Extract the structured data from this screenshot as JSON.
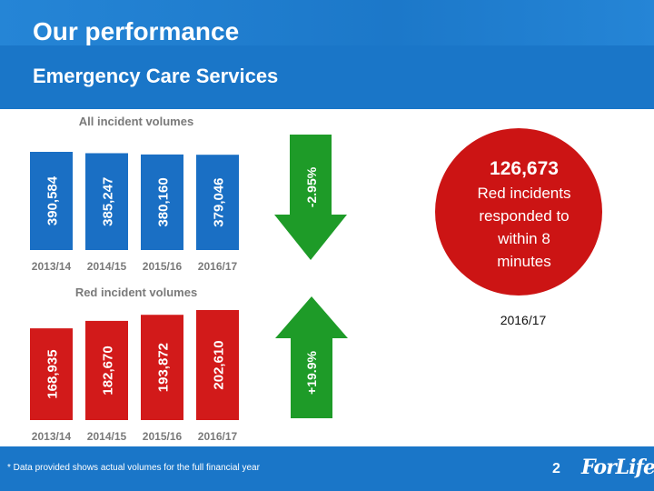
{
  "header": {
    "title": "Our performance",
    "subtitle": "Emergency Care Services"
  },
  "footer": {
    "footnote": "* Data provided shows actual volumes for the full financial year",
    "page_number": "2",
    "logo_text": "ForLife"
  },
  "colors": {
    "brand_blue": "#1a76c8",
    "bar_blue": "#1a6fc4",
    "bar_red": "#d21a1a",
    "arrow_green": "#1e9b28",
    "circle_red": "#cc1414"
  },
  "callout": {
    "value": "126,673",
    "lines": [
      "Red incidents",
      "responded to",
      "within 8",
      "minutes"
    ],
    "caption": "2016/17"
  },
  "chart_data": [
    {
      "type": "bar",
      "title": "All incident volumes",
      "categories": [
        "2013/14",
        "2014/15",
        "2015/16",
        "2016/17"
      ],
      "values": [
        390584,
        385247,
        380160,
        379046
      ],
      "value_labels": [
        "390,584",
        "385,247",
        "380,160",
        "379,046"
      ],
      "change_label": "-2.95%",
      "change_direction": "down"
    },
    {
      "type": "bar",
      "title": "Red incident volumes",
      "categories": [
        "2013/14",
        "2014/15",
        "2015/16",
        "2016/17"
      ],
      "values": [
        168935,
        182670,
        193872,
        202610
      ],
      "value_labels": [
        "168,935",
        "182,670",
        "193,872",
        "202,610"
      ],
      "change_label": "+19.9%",
      "change_direction": "up"
    }
  ]
}
